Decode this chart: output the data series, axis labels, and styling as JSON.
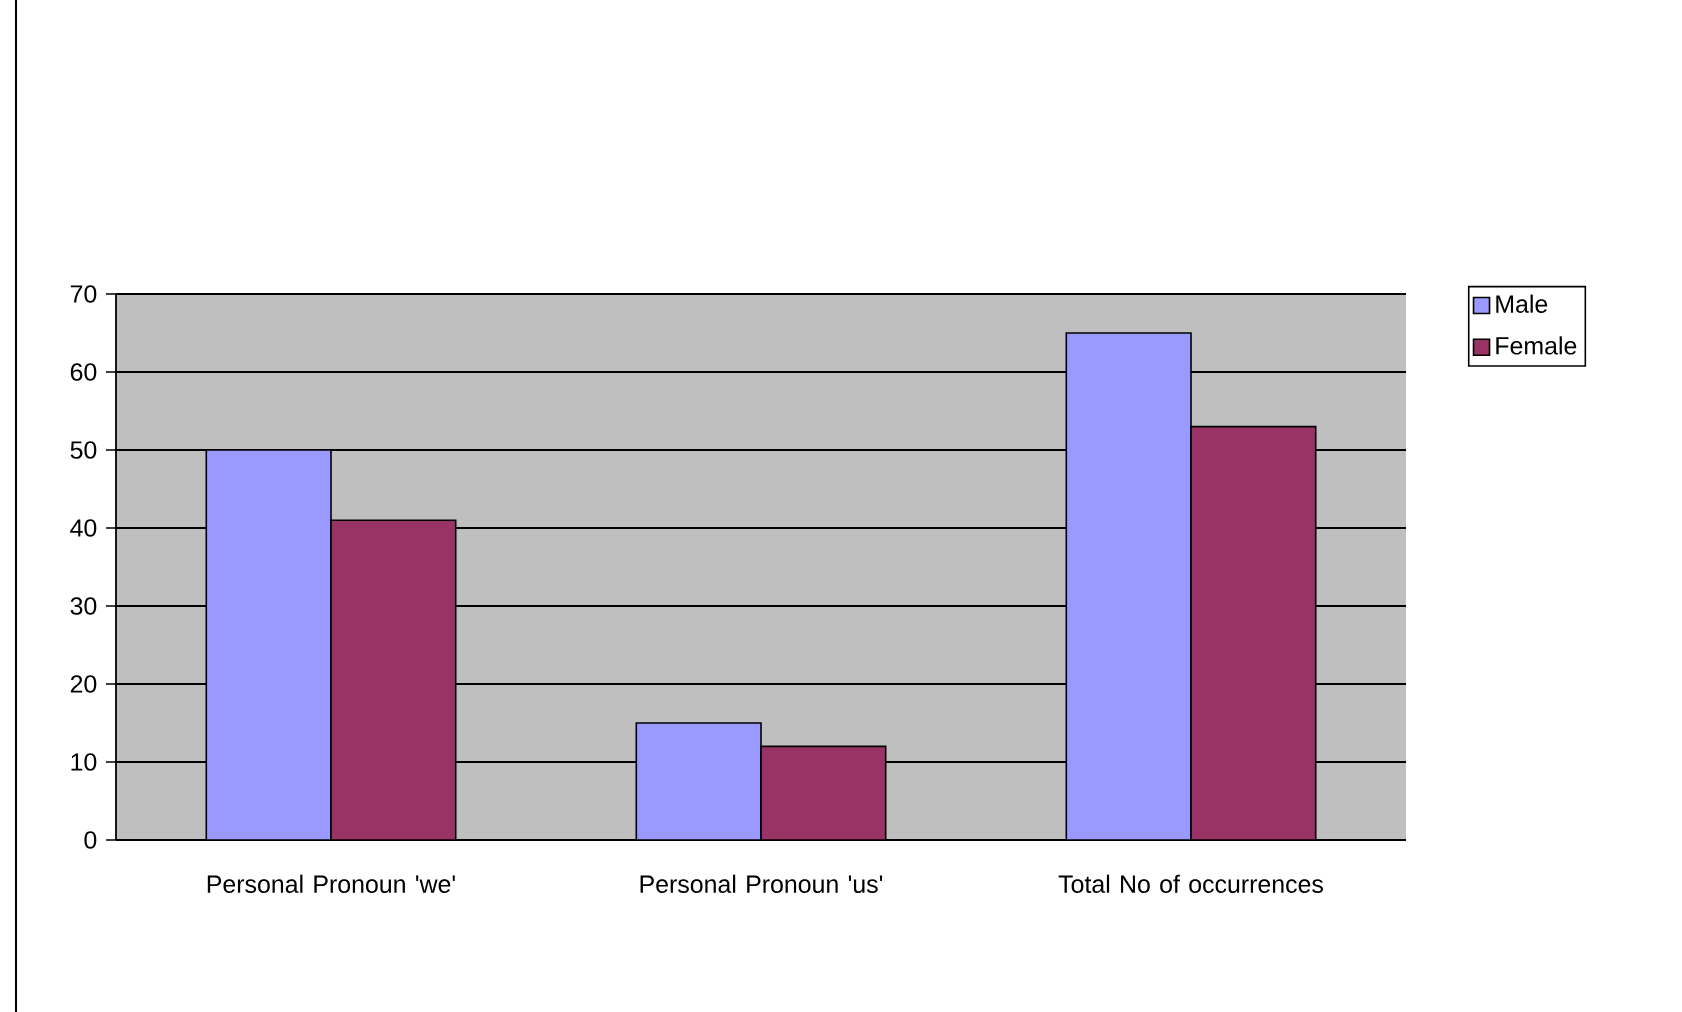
{
  "chart_data": {
    "type": "bar",
    "categories": [
      "Personal Pronoun 'we'",
      "Personal Pronoun 'us'",
      "Total No of occurrences"
    ],
    "series": [
      {
        "name": "Male",
        "color": "#9999ff",
        "values": [
          50,
          15,
          65
        ]
      },
      {
        "name": "Female",
        "color": "#993366",
        "values": [
          41,
          12,
          53
        ]
      }
    ],
    "ylim": [
      0,
      70
    ],
    "yticks": [
      0,
      10,
      20,
      30,
      40,
      50,
      60,
      70
    ],
    "grid": "y",
    "legend": "right"
  }
}
